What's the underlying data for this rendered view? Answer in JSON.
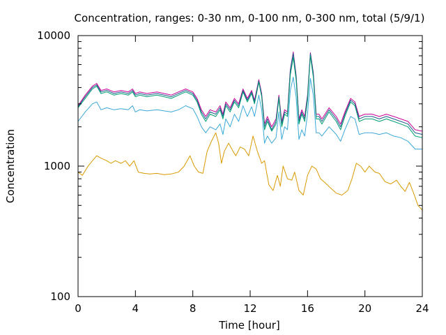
{
  "chart_data": {
    "type": "line",
    "title": "Concentration, ranges: 0-30 nm, 0-100 nm, 0-300 nm, total (5/9/1)",
    "xlabel": "Time [hour]",
    "ylabel": "Concentration",
    "xlim": [
      0,
      24
    ],
    "ylim": [
      100,
      10000
    ],
    "yscale": "log",
    "grid": false,
    "legend": "none",
    "x_ticks": [
      0,
      4,
      8,
      12,
      16,
      20,
      24
    ],
    "x_tick_labels": [
      "0",
      "4",
      "8",
      "12",
      "16",
      "20",
      "24"
    ],
    "y_ticks": [
      100,
      1000,
      10000
    ],
    "y_tick_labels": [
      "100",
      "1000",
      "10000"
    ],
    "series": [
      {
        "color": "#cc0099",
        "x": [
          0,
          0.5,
          1,
          1.3,
          1.6,
          2,
          2.5,
          3,
          3.5,
          3.8,
          4,
          4.3,
          4.8,
          5.5,
          6,
          6.5,
          7,
          7.5,
          8,
          8.3,
          8.6,
          8.9,
          9.2,
          9.6,
          9.9,
          10.1,
          10.3,
          10.6,
          10.9,
          11.2,
          11.5,
          11.8,
          12.1,
          12.3,
          12.6,
          12.8,
          13,
          13.2,
          13.5,
          13.8,
          14,
          14.2,
          14.4,
          14.6,
          14.8,
          15,
          15.2,
          15.4,
          15.6,
          15.8,
          16,
          16.2,
          16.4,
          16.6,
          16.8,
          17,
          17.5,
          18,
          18.3,
          18.6,
          19,
          19.3,
          19.6,
          20,
          20.5,
          21,
          21.5,
          22,
          22.5,
          23,
          23.5,
          24
        ],
        "y": [
          2900,
          3500,
          4100,
          4300,
          3800,
          3900,
          3700,
          3800,
          3700,
          3900,
          3600,
          3700,
          3600,
          3700,
          3600,
          3500,
          3700,
          3900,
          3700,
          3300,
          2700,
          2400,
          2700,
          2600,
          2900,
          2500,
          3100,
          2800,
          3300,
          3000,
          3900,
          3300,
          3800,
          3200,
          4600,
          3600,
          2100,
          2400,
          2000,
          2300,
          3500,
          2200,
          2700,
          2600,
          5500,
          7500,
          5000,
          2300,
          2700,
          2400,
          3500,
          7400,
          5200,
          2500,
          2500,
          2300,
          2800,
          2400,
          2100,
          2600,
          3300,
          3100,
          2400,
          2500,
          2500,
          2400,
          2500,
          2400,
          2300,
          2200,
          1900,
          1850
        ]
      },
      {
        "color": "#1a5f8a",
        "x": [
          0,
          0.5,
          1,
          1.3,
          1.6,
          2,
          2.5,
          3,
          3.5,
          3.8,
          4,
          4.3,
          4.8,
          5.5,
          6,
          6.5,
          7,
          7.5,
          8,
          8.3,
          8.6,
          8.9,
          9.2,
          9.6,
          9.9,
          10.1,
          10.3,
          10.6,
          10.9,
          11.2,
          11.5,
          11.8,
          12.1,
          12.3,
          12.6,
          12.8,
          13,
          13.2,
          13.5,
          13.8,
          14,
          14.2,
          14.4,
          14.6,
          14.8,
          15,
          15.2,
          15.4,
          15.6,
          15.8,
          16,
          16.2,
          16.4,
          16.6,
          16.8,
          17,
          17.5,
          18,
          18.3,
          18.6,
          19,
          19.3,
          19.6,
          20,
          20.5,
          21,
          21.5,
          22,
          22.5,
          23,
          23.5,
          24
        ],
        "y": [
          2850,
          3400,
          4000,
          4200,
          3700,
          3800,
          3600,
          3700,
          3600,
          3800,
          3500,
          3600,
          3500,
          3600,
          3500,
          3400,
          3600,
          3800,
          3600,
          3200,
          2600,
          2300,
          2600,
          2500,
          2800,
          2400,
          3000,
          2700,
          3200,
          2900,
          3800,
          3200,
          3700,
          3100,
          4500,
          3500,
          2000,
          2300,
          1900,
          2200,
          3400,
          2100,
          2600,
          2500,
          5400,
          7300,
          4900,
          2200,
          2600,
          2300,
          3400,
          7300,
          5100,
          2400,
          2400,
          2200,
          2700,
          2300,
          2000,
          2500,
          3200,
          3000,
          2300,
          2400,
          2400,
          2300,
          2400,
          2300,
          2200,
          2100,
          1800,
          1750
        ]
      },
      {
        "color": "#009e73",
        "x": [
          0,
          0.5,
          1,
          1.3,
          1.6,
          2,
          2.5,
          3,
          3.5,
          3.8,
          4,
          4.3,
          4.8,
          5.5,
          6,
          6.5,
          7,
          7.5,
          8,
          8.3,
          8.6,
          8.9,
          9.2,
          9.6,
          9.9,
          10.1,
          10.3,
          10.6,
          10.9,
          11.2,
          11.5,
          11.8,
          12.1,
          12.3,
          12.6,
          12.8,
          13,
          13.2,
          13.5,
          13.8,
          14,
          14.2,
          14.4,
          14.6,
          14.8,
          15,
          15.2,
          15.4,
          15.6,
          15.8,
          16,
          16.2,
          16.4,
          16.6,
          16.8,
          17,
          17.5,
          18,
          18.3,
          18.6,
          19,
          19.3,
          19.6,
          20,
          20.5,
          21,
          21.5,
          22,
          22.5,
          23,
          23.5,
          24
        ],
        "y": [
          2800,
          3300,
          3900,
          4100,
          3600,
          3700,
          3500,
          3600,
          3500,
          3700,
          3400,
          3500,
          3400,
          3500,
          3400,
          3300,
          3500,
          3700,
          3500,
          3100,
          2500,
          2200,
          2500,
          2400,
          2700,
          2300,
          2900,
          2600,
          3100,
          2800,
          3700,
          3100,
          3600,
          3000,
          4400,
          3400,
          1900,
          2200,
          1850,
          2100,
          3300,
          2000,
          2500,
          2400,
          5000,
          6800,
          4600,
          2100,
          2500,
          2200,
          3200,
          7000,
          4800,
          2300,
          2300,
          2100,
          2600,
          2200,
          1900,
          2400,
          3100,
          2900,
          2200,
          2300,
          2300,
          2200,
          2300,
          2200,
          2100,
          2000,
          1700,
          1650
        ]
      },
      {
        "color": "#3ba8d8",
        "x": [
          0,
          0.5,
          1,
          1.3,
          1.6,
          2,
          2.5,
          3,
          3.5,
          3.8,
          4,
          4.3,
          4.8,
          5.5,
          6,
          6.5,
          7,
          7.5,
          8,
          8.3,
          8.6,
          8.9,
          9.2,
          9.6,
          9.9,
          10.1,
          10.3,
          10.6,
          10.9,
          11.2,
          11.5,
          11.8,
          12.1,
          12.3,
          12.6,
          12.8,
          13,
          13.2,
          13.5,
          13.8,
          14,
          14.2,
          14.4,
          14.6,
          14.8,
          15,
          15.2,
          15.4,
          15.6,
          15.8,
          16,
          16.2,
          16.4,
          16.6,
          16.8,
          17,
          17.5,
          18,
          18.3,
          18.6,
          19,
          19.3,
          19.6,
          20,
          20.5,
          21,
          21.5,
          22,
          22.5,
          23,
          23.5,
          24
        ],
        "y": [
          2200,
          2600,
          3000,
          3100,
          2700,
          2800,
          2700,
          2750,
          2700,
          2900,
          2600,
          2700,
          2650,
          2700,
          2650,
          2600,
          2700,
          2900,
          2750,
          2400,
          2000,
          1800,
          2000,
          1900,
          2100,
          1750,
          2300,
          2000,
          2500,
          2200,
          2900,
          2400,
          2850,
          2400,
          3500,
          2700,
          1500,
          1700,
          1500,
          1650,
          2600,
          1600,
          2000,
          1900,
          3800,
          4800,
          3400,
          1600,
          1900,
          1700,
          2500,
          4700,
          3500,
          1800,
          1800,
          1700,
          2000,
          1750,
          1550,
          1900,
          2400,
          2300,
          1750,
          1800,
          1800,
          1750,
          1800,
          1700,
          1650,
          1550,
          1350,
          1350
        ]
      },
      {
        "color": "#d99a00",
        "x": [
          0,
          0.3,
          0.7,
          1,
          1.3,
          1.6,
          2,
          2.3,
          2.6,
          3,
          3.3,
          3.6,
          3.9,
          4.2,
          4.6,
          5,
          5.5,
          6,
          6.5,
          7,
          7.4,
          7.8,
          8.1,
          8.4,
          8.7,
          9,
          9.3,
          9.6,
          9.8,
          10,
          10.2,
          10.5,
          10.8,
          11,
          11.3,
          11.6,
          11.9,
          12.2,
          12.5,
          12.8,
          13,
          13.3,
          13.6,
          13.9,
          14.1,
          14.3,
          14.6,
          14.9,
          15.1,
          15.4,
          15.7,
          16,
          16.3,
          16.6,
          16.9,
          17.2,
          17.6,
          18,
          18.4,
          18.8,
          19.1,
          19.4,
          19.7,
          20,
          20.3,
          20.7,
          21,
          21.4,
          21.8,
          22.2,
          22.5,
          22.8,
          23.1,
          23.4,
          23.7,
          24
        ],
        "y": [
          900,
          850,
          1000,
          1100,
          1200,
          1150,
          1100,
          1050,
          1100,
          1050,
          1100,
          1000,
          1100,
          900,
          880,
          870,
          880,
          860,
          870,
          900,
          1000,
          1200,
          1000,
          900,
          880,
          1300,
          1550,
          1800,
          1500,
          1050,
          1300,
          1500,
          1300,
          1200,
          1400,
          1350,
          1200,
          1700,
          1300,
          1050,
          1100,
          720,
          650,
          850,
          700,
          1000,
          800,
          780,
          900,
          650,
          600,
          850,
          1000,
          950,
          800,
          750,
          680,
          620,
          600,
          650,
          800,
          1050,
          1000,
          900,
          1000,
          900,
          880,
          760,
          730,
          780,
          700,
          640,
          750,
          620,
          500,
          460
        ]
      }
    ]
  }
}
